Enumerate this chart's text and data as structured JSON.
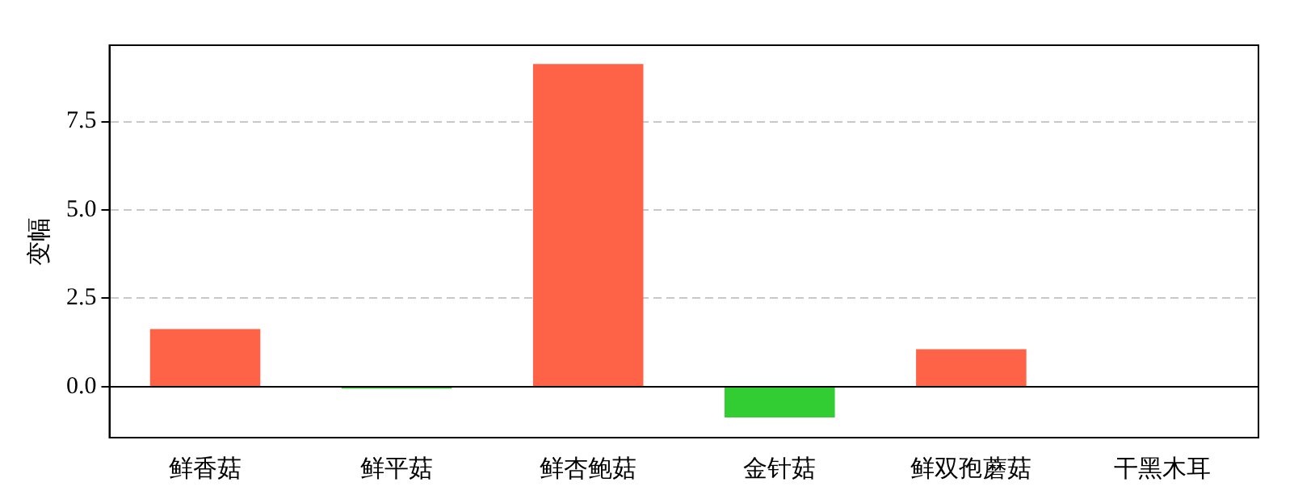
{
  "chart_data": {
    "type": "bar",
    "ylabel": "变幅",
    "categories": [
      "鲜香菇",
      "鲜平菇",
      "鲜杏鲍菇",
      "金针菇",
      "鲜双孢蘑菇",
      "干黑木耳"
    ],
    "values": [
      1.63,
      -0.05,
      9.13,
      -0.87,
      1.06,
      0
    ],
    "colors": [
      "#ff6347",
      "#32cd32",
      "#ff6347",
      "#32cd32",
      "#ff6347",
      "#ff6347"
    ],
    "ylim": [
      -1.44,
      9.66
    ],
    "yticks": [
      {
        "value": 0,
        "label": "0.0"
      },
      2.5,
      {
        "value": 5,
        "label": "5.0"
      },
      7.5
    ],
    "grid": "y",
    "legend": false,
    "ref_lines": [
      {
        "axis": "y",
        "value": 0,
        "color": "#000000"
      }
    ]
  }
}
